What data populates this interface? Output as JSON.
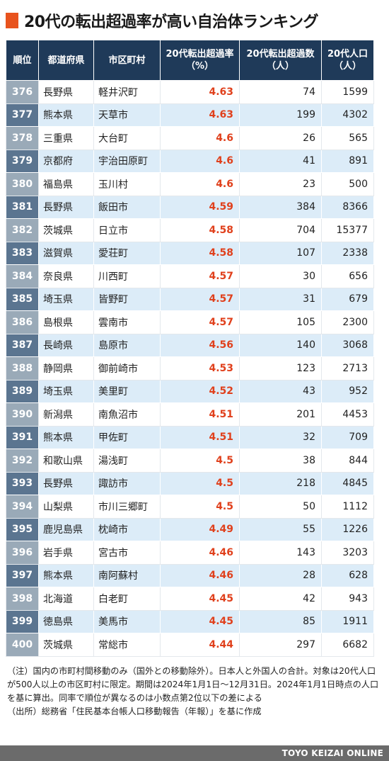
{
  "title": "20代の転出超過率が高い自治体ランキング",
  "colors": {
    "accent": "#e8531e",
    "header_bg": "#1f3a59",
    "rate_text": "#e0401c",
    "row_alt": "#dcecf8"
  },
  "table": {
    "headers": {
      "rank": "順位",
      "prefecture": "都道府県",
      "municipality": "市区町村",
      "rate_line1": "20代転出超過率",
      "rate_line2": "（%）",
      "excess_line1": "20代転出超過数",
      "excess_line2": "（人）",
      "pop_line1": "20代人口",
      "pop_line2": "（人）"
    },
    "rows": [
      {
        "rank": "376",
        "prefecture": "長野県",
        "municipality": "軽井沢町",
        "rate": "4.63",
        "excess": "74",
        "population": "1599"
      },
      {
        "rank": "377",
        "prefecture": "熊本県",
        "municipality": "天草市",
        "rate": "4.63",
        "excess": "199",
        "population": "4302"
      },
      {
        "rank": "378",
        "prefecture": "三重県",
        "municipality": "大台町",
        "rate": "4.6",
        "excess": "26",
        "population": "565"
      },
      {
        "rank": "379",
        "prefecture": "京都府",
        "municipality": "宇治田原町",
        "rate": "4.6",
        "excess": "41",
        "population": "891"
      },
      {
        "rank": "380",
        "prefecture": "福島県",
        "municipality": "玉川村",
        "rate": "4.6",
        "excess": "23",
        "population": "500"
      },
      {
        "rank": "381",
        "prefecture": "長野県",
        "municipality": "飯田市",
        "rate": "4.59",
        "excess": "384",
        "population": "8366"
      },
      {
        "rank": "382",
        "prefecture": "茨城県",
        "municipality": "日立市",
        "rate": "4.58",
        "excess": "704",
        "population": "15377"
      },
      {
        "rank": "383",
        "prefecture": "滋賀県",
        "municipality": "愛荘町",
        "rate": "4.58",
        "excess": "107",
        "population": "2338"
      },
      {
        "rank": "384",
        "prefecture": "奈良県",
        "municipality": "川西町",
        "rate": "4.57",
        "excess": "30",
        "population": "656"
      },
      {
        "rank": "385",
        "prefecture": "埼玉県",
        "municipality": "皆野町",
        "rate": "4.57",
        "excess": "31",
        "population": "679"
      },
      {
        "rank": "386",
        "prefecture": "島根県",
        "municipality": "雲南市",
        "rate": "4.57",
        "excess": "105",
        "population": "2300"
      },
      {
        "rank": "387",
        "prefecture": "長崎県",
        "municipality": "島原市",
        "rate": "4.56",
        "excess": "140",
        "population": "3068"
      },
      {
        "rank": "388",
        "prefecture": "静岡県",
        "municipality": "御前崎市",
        "rate": "4.53",
        "excess": "123",
        "population": "2713"
      },
      {
        "rank": "389",
        "prefecture": "埼玉県",
        "municipality": "美里町",
        "rate": "4.52",
        "excess": "43",
        "population": "952"
      },
      {
        "rank": "390",
        "prefecture": "新潟県",
        "municipality": "南魚沼市",
        "rate": "4.51",
        "excess": "201",
        "population": "4453"
      },
      {
        "rank": "391",
        "prefecture": "熊本県",
        "municipality": "甲佐町",
        "rate": "4.51",
        "excess": "32",
        "population": "709"
      },
      {
        "rank": "392",
        "prefecture": "和歌山県",
        "municipality": "湯浅町",
        "rate": "4.5",
        "excess": "38",
        "population": "844"
      },
      {
        "rank": "393",
        "prefecture": "長野県",
        "municipality": "諏訪市",
        "rate": "4.5",
        "excess": "218",
        "population": "4845"
      },
      {
        "rank": "394",
        "prefecture": "山梨県",
        "municipality": "市川三郷町",
        "rate": "4.5",
        "excess": "50",
        "population": "1112"
      },
      {
        "rank": "395",
        "prefecture": "鹿児島県",
        "municipality": "枕崎市",
        "rate": "4.49",
        "excess": "55",
        "population": "1226"
      },
      {
        "rank": "396",
        "prefecture": "岩手県",
        "municipality": "宮古市",
        "rate": "4.46",
        "excess": "143",
        "population": "3203"
      },
      {
        "rank": "397",
        "prefecture": "熊本県",
        "municipality": "南阿蘇村",
        "rate": "4.46",
        "excess": "28",
        "population": "628"
      },
      {
        "rank": "398",
        "prefecture": "北海道",
        "municipality": "白老町",
        "rate": "4.45",
        "excess": "42",
        "population": "943"
      },
      {
        "rank": "399",
        "prefecture": "徳島県",
        "municipality": "美馬市",
        "rate": "4.45",
        "excess": "85",
        "population": "1911"
      },
      {
        "rank": "400",
        "prefecture": "茨城県",
        "municipality": "常総市",
        "rate": "4.44",
        "excess": "297",
        "population": "6682"
      }
    ]
  },
  "notes": {
    "note": "（注）国内の市町村間移動のみ（国外との移動除外）。日本人と外国人の合計。対象は20代人口が500人以上の市区町村に限定。期間は2024年1月1日〜12月31日。2024年1月1日時点の人口を基に算出。同率で順位が異なるのは小数点第2位以下の差による",
    "source": "（出所）総務省「住民基本台帳人口移動報告（年報）」を基に作成"
  },
  "footer": {
    "brand": "TOYO KEIZAI ONLINE"
  }
}
